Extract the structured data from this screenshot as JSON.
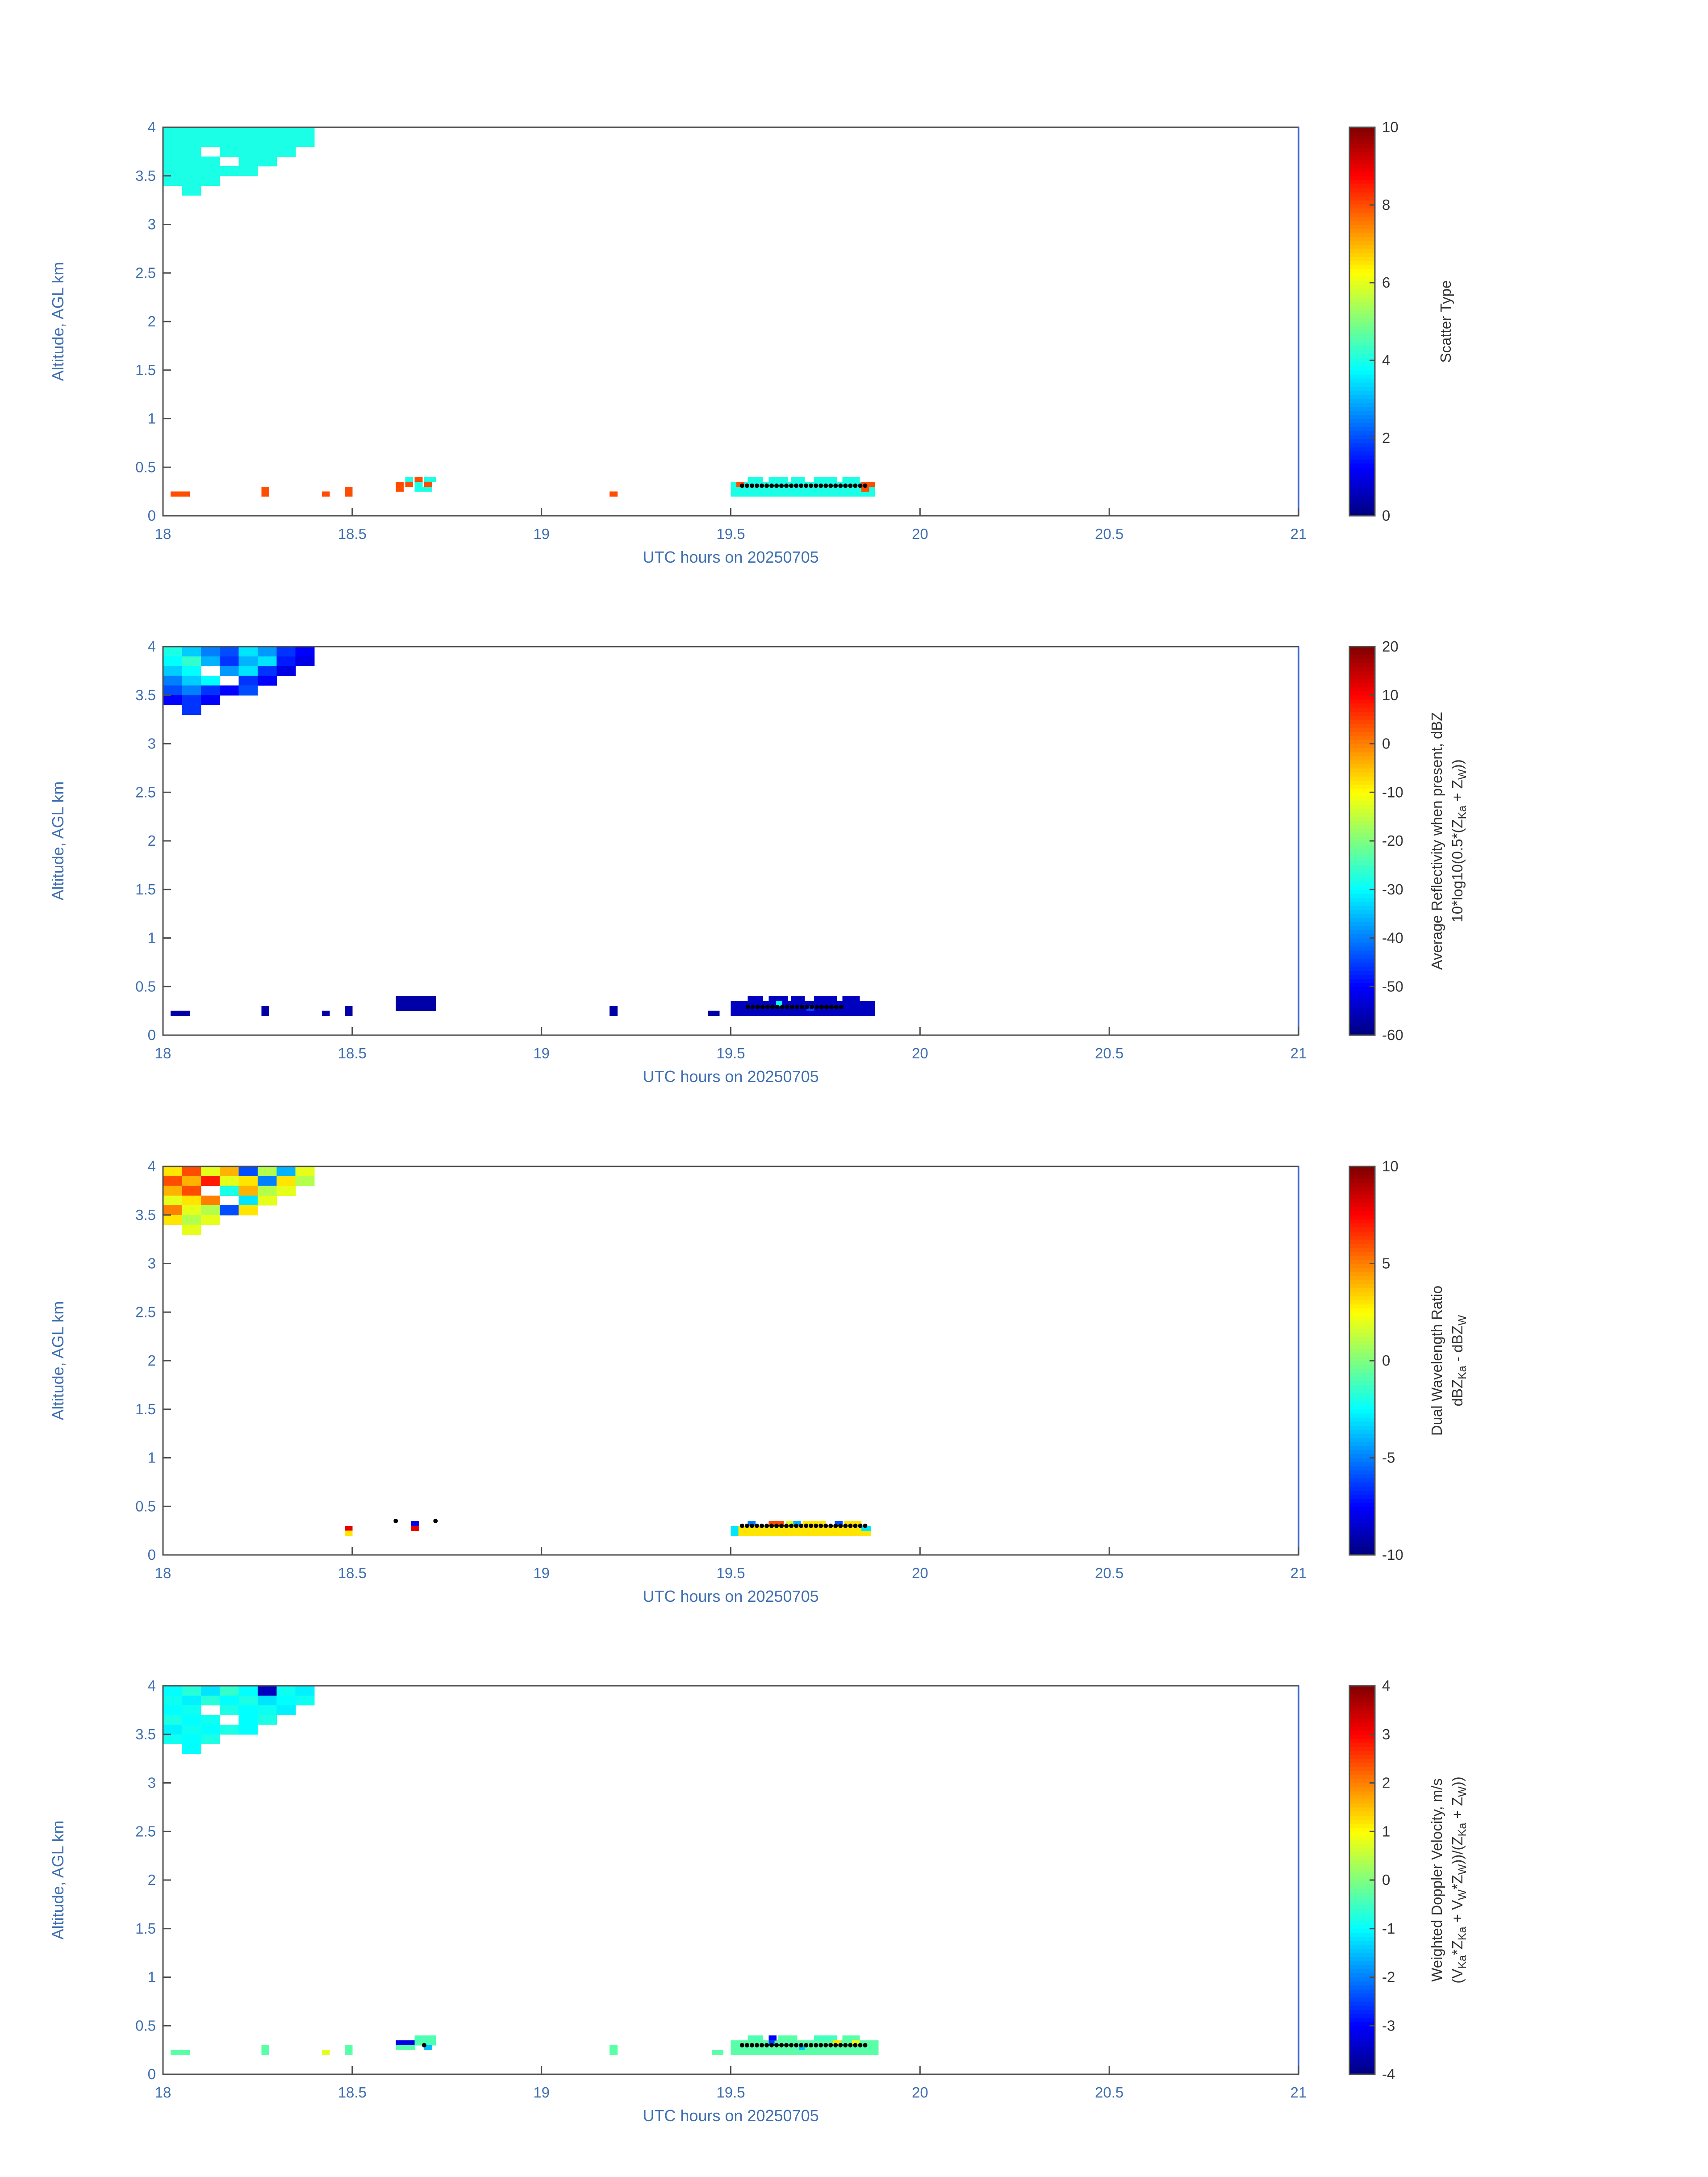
{
  "axes": {
    "x_label": "UTC hours on 20250705",
    "y_label": "Altitude, AGL km",
    "x_ticks": [
      18,
      18.5,
      19,
      19.5,
      20,
      20.5,
      21
    ],
    "y_ticks": [
      0,
      0.5,
      1,
      1.5,
      2,
      2.5,
      3,
      3.5,
      4
    ],
    "x_range": [
      18,
      21
    ],
    "y_range": [
      0,
      4
    ],
    "tick_label_color": "#3f6fb0",
    "axis_label_color": "#3f6fb0",
    "box_color": "#4d4d4d",
    "right_edge_color": "#3a66d0",
    "colorbar_text_color": "#333333",
    "dot_color": "#000000",
    "colormap": "jet"
  },
  "chart_data": [
    {
      "type": "heatmap",
      "name": "scatter-type",
      "colorbar": {
        "label_lines": [
          "Scatter Type"
        ],
        "ticks": [
          0,
          2,
          4,
          6,
          8,
          10
        ],
        "clim": [
          0,
          10
        ]
      },
      "cloud": {
        "dt": 0.05,
        "row_height": 0.1,
        "rows": [
          {
            "alt": 3.9,
            "t0": 18.0,
            "values": [
              4,
              4,
              4,
              4,
              4,
              4,
              4,
              4
            ]
          },
          {
            "alt": 3.8,
            "t0": 18.0,
            "values": [
              4,
              4,
              4,
              4,
              4,
              4,
              4,
              4
            ]
          },
          {
            "alt": 3.7,
            "t0": 18.0,
            "values": [
              4,
              4,
              null,
              4,
              4,
              4,
              4
            ]
          },
          {
            "alt": 3.6,
            "t0": 18.0,
            "values": [
              4,
              4,
              4,
              null,
              4,
              4
            ]
          },
          {
            "alt": 3.5,
            "t0": 18.0,
            "values": [
              4,
              4,
              4,
              4,
              4
            ]
          },
          {
            "alt": 3.4,
            "t0": 18.0,
            "values": [
              4,
              4,
              4
            ]
          },
          {
            "alt": 3.3,
            "t0": 18.05,
            "values": [
              4
            ]
          }
        ]
      },
      "cells": [
        [
          18.02,
          0.2,
          8
        ],
        [
          18.045,
          0.2,
          8
        ],
        [
          18.26,
          0.2,
          8,
          0.02,
          0.1
        ],
        [
          18.42,
          0.2,
          8,
          0.02,
          0.05
        ],
        [
          18.48,
          0.2,
          8,
          0.02,
          0.1
        ],
        [
          18.615,
          0.3,
          8,
          0.02,
          0.05
        ],
        [
          18.615,
          0.25,
          8,
          0.02,
          0.05
        ],
        [
          18.64,
          0.35,
          4,
          0.02,
          0.05
        ],
        [
          18.64,
          0.3,
          8,
          0.02,
          0.05
        ],
        [
          18.665,
          0.35,
          8,
          0.02,
          0.05
        ],
        [
          18.665,
          0.3,
          4,
          0.02,
          0.05
        ],
        [
          18.69,
          0.35,
          4,
          0.03,
          0.05
        ],
        [
          18.69,
          0.3,
          8,
          0.02,
          0.05
        ],
        [
          18.665,
          0.25,
          4,
          0.045,
          0.05
        ],
        [
          19.18,
          0.2,
          8,
          0.02,
          0.05
        ],
        [
          19.5,
          0.2,
          4,
          0.38,
          0.15
        ],
        [
          19.545,
          0.35,
          4,
          0.04,
          0.05
        ],
        [
          19.6,
          0.35,
          4,
          0.05,
          0.05
        ],
        [
          19.66,
          0.35,
          4,
          0.035,
          0.05
        ],
        [
          19.72,
          0.35,
          4,
          0.06,
          0.05
        ],
        [
          19.795,
          0.35,
          4,
          0.045,
          0.05
        ],
        [
          19.515,
          0.3,
          8,
          0.02,
          0.05
        ],
        [
          19.845,
          0.3,
          8,
          0.035,
          0.05
        ],
        [
          19.845,
          0.25,
          8,
          0.02,
          0.05
        ]
      ],
      "dots": [
        {
          "t0": 19.53,
          "t1": 19.86,
          "alt": 0.31,
          "dt": 0.013
        }
      ]
    },
    {
      "type": "heatmap",
      "name": "average-reflectivity",
      "colorbar": {
        "label_lines": [
          "Average Reflectivity when present, dBZ",
          "10*log10(0.5*(Z_{Ka} + Z_{W}))"
        ],
        "ticks": [
          -60,
          -50,
          -40,
          -30,
          -20,
          -10,
          0,
          10,
          20
        ],
        "clim": [
          -60,
          20
        ]
      },
      "cloud": {
        "dt": 0.05,
        "row_height": 0.1,
        "rows": [
          {
            "alt": 3.9,
            "t0": 18.0,
            "values": [
              -28,
              -34,
              -40,
              -44,
              -32,
              -38,
              -46,
              -50
            ]
          },
          {
            "alt": 3.8,
            "t0": 18.0,
            "values": [
              -30,
              -26,
              -36,
              -46,
              -36,
              -32,
              -48,
              -52
            ]
          },
          {
            "alt": 3.7,
            "t0": 18.0,
            "values": [
              -34,
              -30,
              null,
              -38,
              -32,
              -46,
              -52
            ]
          },
          {
            "alt": 3.6,
            "t0": 18.0,
            "values": [
              -40,
              -34,
              -30,
              null,
              -46,
              -50
            ]
          },
          {
            "alt": 3.5,
            "t0": 18.0,
            "values": [
              -44,
              -40,
              -46,
              -50,
              -44
            ]
          },
          {
            "alt": 3.4,
            "t0": 18.0,
            "values": [
              -50,
              -46,
              -50
            ]
          },
          {
            "alt": 3.3,
            "t0": 18.05,
            "values": [
              -46
            ]
          }
        ]
      },
      "cells": [
        [
          18.02,
          0.2,
          -57,
          0.05,
          0.05
        ],
        [
          18.26,
          0.2,
          -57,
          0.02,
          0.1
        ],
        [
          18.42,
          0.2,
          -57,
          0.02,
          0.05
        ],
        [
          18.48,
          0.2,
          -57,
          0.02,
          0.1
        ],
        [
          18.615,
          0.25,
          -57,
          0.105,
          0.15
        ],
        [
          19.18,
          0.2,
          -57,
          0.02,
          0.1
        ],
        [
          19.44,
          0.2,
          -57,
          0.03,
          0.05
        ],
        [
          19.5,
          0.2,
          -55,
          0.38,
          0.15
        ],
        [
          19.545,
          0.35,
          -55,
          0.04,
          0.05
        ],
        [
          19.6,
          0.35,
          -55,
          0.05,
          0.05
        ],
        [
          19.66,
          0.35,
          -55,
          0.035,
          0.05
        ],
        [
          19.72,
          0.35,
          -55,
          0.06,
          0.05
        ],
        [
          19.795,
          0.35,
          -55,
          0.045,
          0.05
        ],
        [
          19.62,
          0.3,
          -30,
          0.015,
          0.05
        ],
        [
          19.7,
          0.25,
          -45,
          0.02,
          0.05
        ]
      ],
      "dots": [
        {
          "t0": 19.545,
          "t1": 19.8,
          "alt": 0.29,
          "dt": 0.013
        }
      ]
    },
    {
      "type": "heatmap",
      "name": "dual-wavelength-ratio",
      "colorbar": {
        "label_lines": [
          "Dual Wavelength Ratio",
          "dBZ_{Ka} - dBZ_{W}"
        ],
        "ticks": [
          -10,
          -5,
          0,
          5,
          10
        ],
        "clim": [
          -10,
          10
        ]
      },
      "cloud": {
        "dt": 0.05,
        "row_height": 0.1,
        "rows": [
          {
            "alt": 3.9,
            "t0": 18.0,
            "values": [
              3,
              6,
              2,
              4,
              -6,
              1,
              -4,
              2
            ]
          },
          {
            "alt": 3.8,
            "t0": 18.0,
            "values": [
              6,
              4,
              7,
              2,
              3,
              -5,
              3,
              1
            ]
          },
          {
            "alt": 3.7,
            "t0": 18.0,
            "values": [
              4,
              6,
              null,
              -2,
              4,
              1,
              2
            ]
          },
          {
            "alt": 3.6,
            "t0": 18.0,
            "values": [
              2,
              3,
              5,
              null,
              -3,
              2
            ]
          },
          {
            "alt": 3.5,
            "t0": 18.0,
            "values": [
              5,
              2,
              1,
              -6,
              3
            ]
          },
          {
            "alt": 3.4,
            "t0": 18.0,
            "values": [
              3,
              1,
              2
            ]
          },
          {
            "alt": 3.3,
            "t0": 18.05,
            "values": [
              2
            ]
          }
        ]
      },
      "cells": [
        [
          18.48,
          0.25,
          8,
          0.02,
          0.05
        ],
        [
          18.48,
          0.2,
          3,
          0.02,
          0.05
        ],
        [
          18.655,
          0.3,
          -8,
          0.02,
          0.05
        ],
        [
          18.655,
          0.25,
          8,
          0.02,
          0.05
        ],
        [
          19.5,
          0.2,
          -3,
          0.02,
          0.1
        ],
        [
          19.52,
          0.2,
          3,
          0.35,
          0.1
        ],
        [
          19.545,
          0.3,
          -5,
          0.02,
          0.05
        ],
        [
          19.6,
          0.3,
          6,
          0.04,
          0.05
        ],
        [
          19.645,
          0.3,
          2,
          0.02,
          0.05
        ],
        [
          19.665,
          0.3,
          -4,
          0.02,
          0.05
        ],
        [
          19.69,
          0.3,
          3,
          0.06,
          0.05
        ],
        [
          19.775,
          0.3,
          -6,
          0.02,
          0.05
        ],
        [
          19.8,
          0.3,
          3,
          0.045,
          0.05
        ],
        [
          19.845,
          0.25,
          -3,
          0.025,
          0.05
        ]
      ],
      "dots": [
        {
          "t0": 19.53,
          "t1": 19.86,
          "alt": 0.3,
          "dt": 0.013
        },
        {
          "points": [
            [
              18.615,
              0.35
            ],
            [
              18.72,
              0.35
            ]
          ]
        }
      ]
    },
    {
      "type": "heatmap",
      "name": "weighted-doppler-velocity",
      "colorbar": {
        "label_lines": [
          "Weighted Doppler Velocity, m/s",
          "(V_{Ka}*Z_{Ka} + V_{W}*Z_{W}))/(Z_{Ka} + Z_{W}))"
        ],
        "ticks": [
          -4,
          -3,
          -2,
          -1,
          0,
          1,
          2,
          3,
          4
        ],
        "clim": [
          -4,
          4
        ]
      },
      "cloud": {
        "dt": 0.05,
        "row_height": 0.1,
        "rows": [
          {
            "alt": 3.9,
            "t0": 18.0,
            "values": [
              -1,
              -0.7,
              -1.2,
              -0.6,
              -1,
              -3.5,
              -0.9,
              -1.1
            ]
          },
          {
            "alt": 3.8,
            "t0": 18.0,
            "values": [
              -0.9,
              -1.1,
              -0.7,
              -1,
              -0.8,
              -1.2,
              -1,
              -0.9
            ]
          },
          {
            "alt": 3.7,
            "t0": 18.0,
            "values": [
              -1,
              -0.9,
              null,
              -0.8,
              -1,
              -0.9,
              -1.1
            ]
          },
          {
            "alt": 3.6,
            "t0": 18.0,
            "values": [
              -0.8,
              -1,
              -0.9,
              null,
              -1,
              -0.8
            ]
          },
          {
            "alt": 3.5,
            "t0": 18.0,
            "values": [
              -1.1,
              -0.9,
              -1,
              -0.8,
              -1
            ]
          },
          {
            "alt": 3.4,
            "t0": 18.0,
            "values": [
              -0.9,
              -1,
              -0.8
            ]
          },
          {
            "alt": 3.3,
            "t0": 18.05,
            "values": [
              -1
            ]
          }
        ]
      },
      "cells": [
        [
          18.02,
          0.2,
          -0.3,
          0.05,
          0.05
        ],
        [
          18.26,
          0.2,
          -0.3,
          0.02,
          0.1
        ],
        [
          18.42,
          0.2,
          0.8,
          0.02,
          0.05
        ],
        [
          18.48,
          0.2,
          -0.3,
          0.02,
          0.1
        ],
        [
          18.615,
          0.3,
          -3.2,
          0.05,
          0.05
        ],
        [
          18.615,
          0.25,
          -0.3,
          0.05,
          0.05
        ],
        [
          18.665,
          0.3,
          -0.4,
          0.055,
          0.1
        ],
        [
          18.69,
          0.25,
          -1.5,
          0.02,
          0.05
        ],
        [
          19.18,
          0.2,
          -0.3,
          0.02,
          0.1
        ],
        [
          19.45,
          0.2,
          -0.3,
          0.03,
          0.05
        ],
        [
          19.5,
          0.2,
          -0.3,
          0.39,
          0.15
        ],
        [
          19.545,
          0.35,
          -0.4,
          0.04,
          0.05
        ],
        [
          19.6,
          0.35,
          -3,
          0.02,
          0.05
        ],
        [
          19.625,
          0.35,
          -0.3,
          0.05,
          0.05
        ],
        [
          19.72,
          0.35,
          -0.5,
          0.06,
          0.05
        ],
        [
          19.795,
          0.35,
          -0.3,
          0.045,
          0.05
        ],
        [
          19.6,
          0.3,
          -2.5,
          0.015,
          0.05
        ],
        [
          19.77,
          0.3,
          1.2,
          0.02,
          0.05
        ],
        [
          19.82,
          0.3,
          0.8,
          0.02,
          0.05
        ],
        [
          19.68,
          0.25,
          -1.5,
          0.015,
          0.05
        ]
      ],
      "dots": [
        {
          "t0": 19.53,
          "t1": 19.86,
          "alt": 0.3,
          "dt": 0.013
        },
        {
          "points": [
            [
              18.69,
              0.3
            ]
          ]
        }
      ]
    }
  ]
}
